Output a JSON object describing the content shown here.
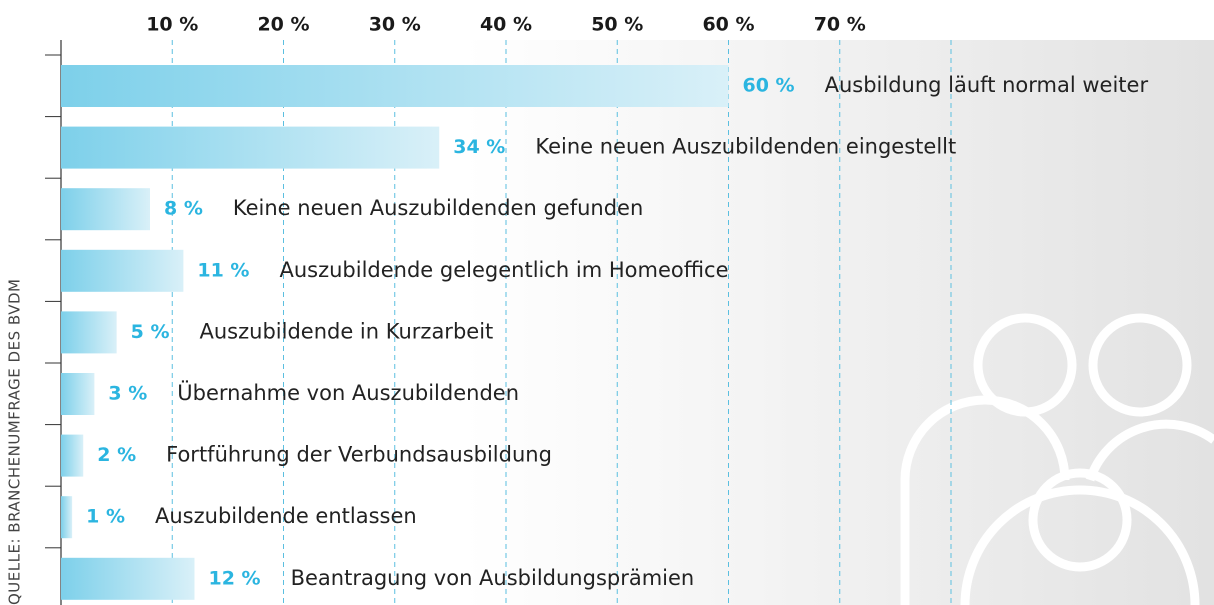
{
  "chart_data": {
    "type": "bar",
    "orientation": "horizontal",
    "categories": [
      "Ausbildung läuft normal weiter",
      "Keine neuen Auszubildenden eingestellt",
      "Keine neuen Auszubildenden gefunden",
      "Auszubildende gelegentlich im Homeoffice",
      "Auszubildende in Kurzarbeit",
      "Übernahme von Auszubildenden",
      "Fortführung der Verbundsausbildung",
      "Auszubildende entlassen",
      "Beantragung von Ausbildungsprämien"
    ],
    "values": [
      60,
      34,
      8,
      11,
      5,
      3,
      2,
      1,
      12
    ],
    "value_labels": [
      "60 %",
      "34 %",
      "8 %",
      "11 %",
      "5 %",
      "3 %",
      "2 %",
      "1 %",
      "12 %"
    ],
    "color": "#7dd0ea",
    "label_color": "#2bb5e0",
    "xlim": [
      0,
      80
    ],
    "xticks": [
      {
        "value": 10,
        "label": "10 %"
      },
      {
        "value": 20,
        "label": "20 %"
      },
      {
        "value": 30,
        "label": "30 %"
      },
      {
        "value": 40,
        "label": "40 %"
      },
      {
        "value": 50,
        "label": "50 %"
      },
      {
        "value": 60,
        "label": "60 %"
      },
      {
        "value": 70,
        "label": "70 %"
      }
    ],
    "grid": true,
    "source": "QUELLE: BRANCHENUMFRAGE DES BVDM"
  }
}
